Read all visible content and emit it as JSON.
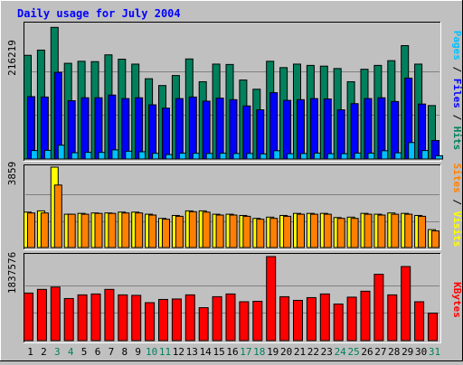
{
  "title": "Daily usage for July 2004",
  "colors": {
    "background": "#c0c0c0",
    "title": "#0000ff",
    "hits": "#00805c",
    "files": "#0000ff",
    "pages": "#00c0ff",
    "visits": "#ffff00",
    "sites": "#ff8000",
    "kbytes": "#ff0000",
    "weekend_label": "#00805c",
    "weekday_label": "#000000"
  },
  "chart_data": [
    {
      "type": "bar",
      "name": "hits-files-pages",
      "max_label": "216219",
      "ylim": [
        0,
        216219
      ],
      "legend": [
        "Pages",
        "Files",
        "Hits"
      ],
      "categories": [
        "1",
        "2",
        "3",
        "4",
        "5",
        "6",
        "7",
        "8",
        "9",
        "10",
        "11",
        "12",
        "13",
        "14",
        "15",
        "16",
        "17",
        "18",
        "19",
        "20",
        "21",
        "22",
        "23",
        "24",
        "25",
        "26",
        "27",
        "28",
        "29",
        "30",
        "31"
      ],
      "series": [
        {
          "name": "Hits",
          "values": [
            168800,
            177300,
            214300,
            155800,
            159100,
            158500,
            169600,
            162500,
            154500,
            130700,
            119600,
            135900,
            162900,
            125800,
            154500,
            153900,
            128600,
            113600,
            159100,
            148800,
            154500,
            152400,
            151200,
            147300,
            125800,
            146100,
            152400,
            160100,
            184600,
            154500,
            87000
          ]
        },
        {
          "name": "Files",
          "values": [
            101500,
            100900,
            141100,
            94900,
            99700,
            99700,
            104100,
            98400,
            99700,
            88200,
            82800,
            98400,
            100900,
            94200,
            99100,
            96600,
            86400,
            80100,
            108000,
            95500,
            96600,
            98400,
            97800,
            80100,
            90100,
            98400,
            99700,
            93600,
            131700,
            89500,
            30100
          ]
        },
        {
          "name": "Pages",
          "values": [
            13800,
            14100,
            22500,
            10200,
            10900,
            10800,
            14900,
            12700,
            11800,
            9300,
            7300,
            9500,
            9300,
            9100,
            9500,
            9000,
            9100,
            8400,
            13500,
            8700,
            9000,
            9600,
            8700,
            8700,
            9600,
            9600,
            13500,
            10100,
            26800,
            13800,
            5300
          ]
        }
      ]
    },
    {
      "type": "bar",
      "name": "visits-sites",
      "max_label": "3859",
      "ylim": [
        0,
        3859
      ],
      "legend": [
        "Sites",
        "Visits"
      ],
      "categories": [
        "1",
        "2",
        "3",
        "4",
        "5",
        "6",
        "7",
        "8",
        "9",
        "10",
        "11",
        "12",
        "13",
        "14",
        "15",
        "16",
        "17",
        "18",
        "19",
        "20",
        "21",
        "22",
        "23",
        "24",
        "25",
        "26",
        "27",
        "28",
        "29",
        "30",
        "31"
      ],
      "series": [
        {
          "name": "Visits",
          "values": [
            1700,
            1760,
            3859,
            1600,
            1640,
            1660,
            1660,
            1700,
            1700,
            1600,
            1400,
            1540,
            1760,
            1760,
            1600,
            1600,
            1540,
            1400,
            1460,
            1540,
            1640,
            1640,
            1640,
            1440,
            1460,
            1640,
            1600,
            1660,
            1640,
            1540,
            860
          ]
        },
        {
          "name": "Sites",
          "values": [
            1660,
            1660,
            3000,
            1600,
            1600,
            1640,
            1640,
            1660,
            1660,
            1560,
            1360,
            1500,
            1720,
            1700,
            1560,
            1560,
            1500,
            1360,
            1400,
            1500,
            1600,
            1600,
            1600,
            1400,
            1400,
            1600,
            1560,
            1600,
            1600,
            1500,
            800
          ]
        }
      ]
    },
    {
      "type": "bar",
      "name": "kbytes",
      "max_label": "1837576",
      "ylim": [
        0,
        1837576
      ],
      "legend": [
        "KBytes"
      ],
      "categories": [
        "1",
        "2",
        "3",
        "4",
        "5",
        "6",
        "7",
        "8",
        "9",
        "10",
        "11",
        "12",
        "13",
        "14",
        "15",
        "16",
        "17",
        "18",
        "19",
        "20",
        "21",
        "22",
        "23",
        "24",
        "25",
        "26",
        "27",
        "28",
        "29",
        "30",
        "31"
      ],
      "series": [
        {
          "name": "KBytes",
          "values": [
            1040000,
            1120000,
            1170000,
            920000,
            1000000,
            1020000,
            1120000,
            1000000,
            990000,
            830000,
            900000,
            910000,
            1000000,
            720000,
            960000,
            1020000,
            850000,
            860000,
            1837576,
            960000,
            880000,
            940000,
            1020000,
            800000,
            950000,
            1080000,
            1450000,
            1000000,
            1620000,
            850000,
            600000
          ]
        }
      ]
    }
  ],
  "x_labels": [
    "1",
    "2",
    "3",
    "4",
    "5",
    "6",
    "7",
    "8",
    "9",
    "10",
    "11",
    "12",
    "13",
    "14",
    "15",
    "16",
    "17",
    "18",
    "19",
    "20",
    "21",
    "22",
    "23",
    "24",
    "25",
    "26",
    "27",
    "28",
    "29",
    "30",
    "31"
  ],
  "weekend_days": [
    3,
    4,
    10,
    11,
    17,
    18,
    24,
    25,
    31
  ]
}
